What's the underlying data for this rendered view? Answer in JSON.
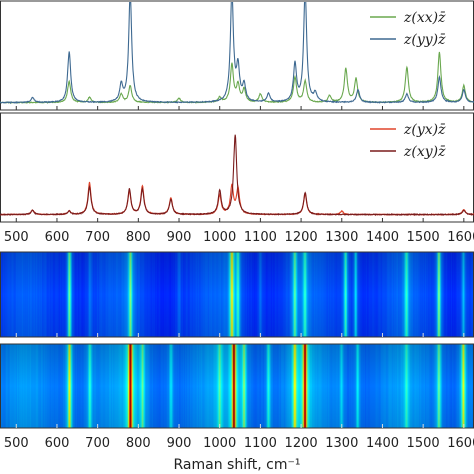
{
  "chart_data": [
    {
      "type": "line",
      "panel": "top-spectra",
      "xlim": [
        460,
        1625
      ],
      "legend_position": "top-right",
      "series": [
        {
          "name": "z(xx)z̄",
          "color": "#6aa84f",
          "peaks": [
            {
              "x": 630,
              "h": 0.25
            },
            {
              "x": 680,
              "h": 0.06
            },
            {
              "x": 758,
              "h": 0.1
            },
            {
              "x": 780,
              "h": 0.2
            },
            {
              "x": 900,
              "h": 0.05
            },
            {
              "x": 1000,
              "h": 0.06
            },
            {
              "x": 1030,
              "h": 0.45
            },
            {
              "x": 1045,
              "h": 0.2
            },
            {
              "x": 1060,
              "h": 0.15
            },
            {
              "x": 1100,
              "h": 0.1
            },
            {
              "x": 1185,
              "h": 0.3
            },
            {
              "x": 1210,
              "h": 0.25
            },
            {
              "x": 1270,
              "h": 0.08
            },
            {
              "x": 1310,
              "h": 0.4
            },
            {
              "x": 1335,
              "h": 0.28
            },
            {
              "x": 1460,
              "h": 0.42
            },
            {
              "x": 1540,
              "h": 0.6
            },
            {
              "x": 1600,
              "h": 0.2
            }
          ]
        },
        {
          "name": "z(yy)z̄",
          "color": "#3e6991",
          "peaks": [
            {
              "x": 540,
              "h": 0.06
            },
            {
              "x": 630,
              "h": 0.6
            },
            {
              "x": 758,
              "h": 0.2
            },
            {
              "x": 780,
              "h": 1.3
            },
            {
              "x": 1030,
              "h": 1.3
            },
            {
              "x": 1045,
              "h": 0.4
            },
            {
              "x": 1060,
              "h": 0.2
            },
            {
              "x": 1120,
              "h": 0.1
            },
            {
              "x": 1185,
              "h": 0.45
            },
            {
              "x": 1210,
              "h": 1.3
            },
            {
              "x": 1235,
              "h": 0.1
            },
            {
              "x": 1340,
              "h": 0.15
            },
            {
              "x": 1460,
              "h": 0.1
            },
            {
              "x": 1540,
              "h": 0.3
            },
            {
              "x": 1600,
              "h": 0.15
            }
          ]
        }
      ]
    },
    {
      "type": "line",
      "panel": "middle-spectra",
      "xlim": [
        460,
        1625
      ],
      "legend_position": "top-right",
      "series": [
        {
          "name": "z(yx)z̄",
          "color": "#e0452b",
          "peaks": [
            {
              "x": 540,
              "h": 0.05
            },
            {
              "x": 630,
              "h": 0.04
            },
            {
              "x": 680,
              "h": 0.38
            },
            {
              "x": 778,
              "h": 0.28
            },
            {
              "x": 810,
              "h": 0.34
            },
            {
              "x": 880,
              "h": 0.2
            },
            {
              "x": 1000,
              "h": 0.23
            },
            {
              "x": 1030,
              "h": 0.33
            },
            {
              "x": 1045,
              "h": 0.3
            },
            {
              "x": 1210,
              "h": 0.24
            },
            {
              "x": 1300,
              "h": 0.04
            },
            {
              "x": 1600,
              "h": 0.06
            }
          ]
        },
        {
          "name": "z(xy)z̄",
          "color": "#7a1c1c",
          "peaks": [
            {
              "x": 540,
              "h": 0.05
            },
            {
              "x": 630,
              "h": 0.04
            },
            {
              "x": 680,
              "h": 0.33
            },
            {
              "x": 778,
              "h": 0.3
            },
            {
              "x": 810,
              "h": 0.3
            },
            {
              "x": 880,
              "h": 0.18
            },
            {
              "x": 1000,
              "h": 0.28
            },
            {
              "x": 1038,
              "h": 0.95
            },
            {
              "x": 1210,
              "h": 0.26
            },
            {
              "x": 1600,
              "h": 0.05
            }
          ]
        }
      ]
    },
    {
      "type": "heatmap",
      "panel": "heatmap-upper",
      "xlim": [
        460,
        1625
      ],
      "colormap": "jet",
      "bands": [
        {
          "x": 630,
          "h": 0.45
        },
        {
          "x": 780,
          "h": 0.4
        },
        {
          "x": 1030,
          "h": 0.6
        },
        {
          "x": 1045,
          "h": 0.3
        },
        {
          "x": 1185,
          "h": 0.35
        },
        {
          "x": 1210,
          "h": 0.3
        },
        {
          "x": 1310,
          "h": 0.35
        },
        {
          "x": 1335,
          "h": 0.25
        },
        {
          "x": 1460,
          "h": 0.3
        },
        {
          "x": 1540,
          "h": 0.45
        },
        {
          "x": 1600,
          "h": 0.2
        },
        {
          "x": 680,
          "h": 0.1
        },
        {
          "x": 900,
          "h": 0.08
        },
        {
          "x": 1100,
          "h": 0.1
        }
      ]
    },
    {
      "type": "heatmap",
      "panel": "heatmap-lower",
      "xlim": [
        460,
        1625
      ],
      "colormap": "jet",
      "bands": [
        {
          "x": 630,
          "h": 0.55
        },
        {
          "x": 680,
          "h": 0.25
        },
        {
          "x": 780,
          "h": 1.0
        },
        {
          "x": 810,
          "h": 0.3
        },
        {
          "x": 880,
          "h": 0.2
        },
        {
          "x": 1000,
          "h": 0.25
        },
        {
          "x": 1035,
          "h": 1.0
        },
        {
          "x": 1060,
          "h": 0.35
        },
        {
          "x": 1120,
          "h": 0.25
        },
        {
          "x": 1185,
          "h": 0.5
        },
        {
          "x": 1210,
          "h": 0.95
        },
        {
          "x": 1300,
          "h": 0.15
        },
        {
          "x": 1340,
          "h": 0.2
        },
        {
          "x": 1460,
          "h": 0.2
        },
        {
          "x": 1540,
          "h": 0.35
        },
        {
          "x": 1600,
          "h": 0.5
        }
      ]
    }
  ],
  "axes": {
    "xticks": [
      500,
      600,
      700,
      800,
      900,
      1000,
      1100,
      1200,
      1300,
      1400,
      1500,
      1600
    ],
    "xlabel": "Raman shift, cm⁻¹"
  }
}
